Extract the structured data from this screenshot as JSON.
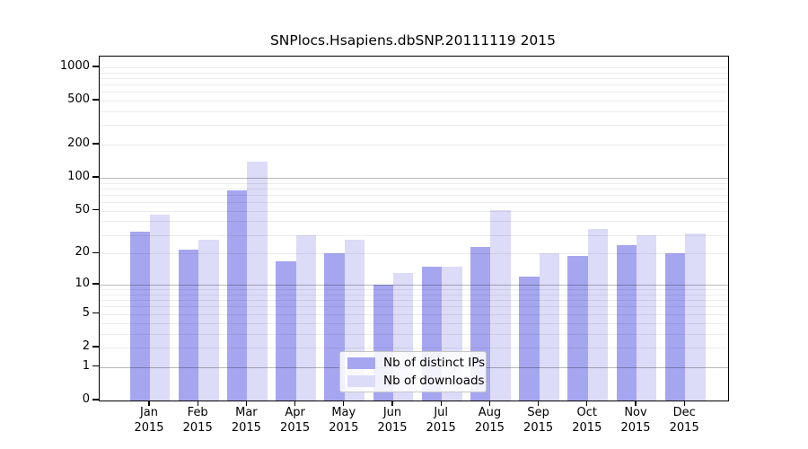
{
  "chart_data": {
    "type": "bar",
    "title": "SNPlocs.Hsapiens.dbSNP.20111119 2015",
    "categories": [
      "Jan",
      "Feb",
      "Mar",
      "Apr",
      "May",
      "Jun",
      "Jul",
      "Aug",
      "Sep",
      "Oct",
      "Nov",
      "Dec"
    ],
    "x_sublabel": "2015",
    "series": [
      {
        "name": "Nb of distinct IPs",
        "color": "#a6a6f0",
        "values": [
          32,
          22,
          77,
          17,
          20,
          10,
          15,
          23,
          12,
          19,
          24,
          20
        ]
      },
      {
        "name": "Nb of downloads",
        "color": "#dcdcf8",
        "values": [
          46,
          27,
          140,
          30,
          27,
          13,
          15,
          51,
          20,
          34,
          30,
          31
        ]
      }
    ],
    "yscale": "log10(1+v)",
    "ylim": [
      0,
      1000
    ],
    "y_ticks": [
      0,
      1,
      2,
      5,
      10,
      20,
      50,
      100,
      200,
      500,
      1000
    ],
    "major_gridlines": [
      1,
      10,
      100
    ],
    "minor_gridlines": [
      2,
      3,
      4,
      5,
      6,
      7,
      8,
      9,
      20,
      30,
      40,
      50,
      60,
      70,
      80,
      90,
      200,
      300,
      400,
      500,
      600,
      700,
      800,
      900,
      1000
    ],
    "grid": true,
    "legend_position": "lower-center",
    "xlabel": "",
    "ylabel": ""
  }
}
